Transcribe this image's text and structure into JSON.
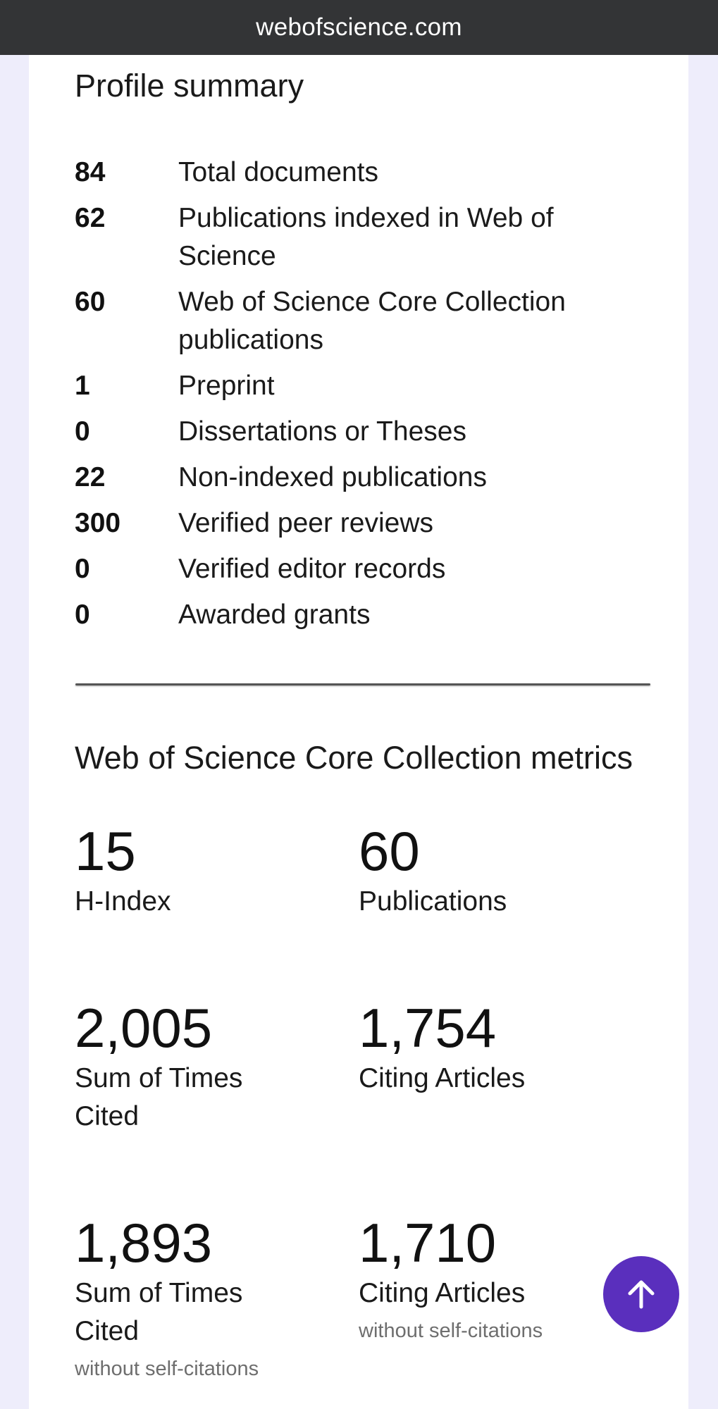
{
  "browser": {
    "url": "webofscience.com"
  },
  "profile_summary": {
    "title": "Profile summary",
    "items": [
      {
        "value": "84",
        "label": "Total documents"
      },
      {
        "value": "62",
        "label": "Publications indexed in Web of Science"
      },
      {
        "value": "60",
        "label": "Web of Science Core Collection publications"
      },
      {
        "value": "1",
        "label": "Preprint"
      },
      {
        "value": "0",
        "label": "Dissertations or Theses"
      },
      {
        "value": "22",
        "label": "Non-indexed publications"
      },
      {
        "value": "300",
        "label": "Verified peer reviews"
      },
      {
        "value": "0",
        "label": "Verified editor records"
      },
      {
        "value": "0",
        "label": "Awarded grants"
      }
    ]
  },
  "metrics": {
    "title": "Web of Science Core Collection metrics",
    "items": [
      {
        "value": "15",
        "label": "H-Index",
        "note": ""
      },
      {
        "value": "60",
        "label": "Publications",
        "note": ""
      },
      {
        "value": "2,005",
        "label": "Sum of Times Cited",
        "note": ""
      },
      {
        "value": "1,754",
        "label": "Citing Articles",
        "note": ""
      },
      {
        "value": "1,893",
        "label": "Sum of Times Cited",
        "note": "without self-citations"
      },
      {
        "value": "1,710",
        "label": "Citing Articles",
        "note": "without self-citations"
      }
    ]
  },
  "scroll_top_button": {
    "icon": "arrow-up-icon",
    "color": "#5a2fbd"
  }
}
